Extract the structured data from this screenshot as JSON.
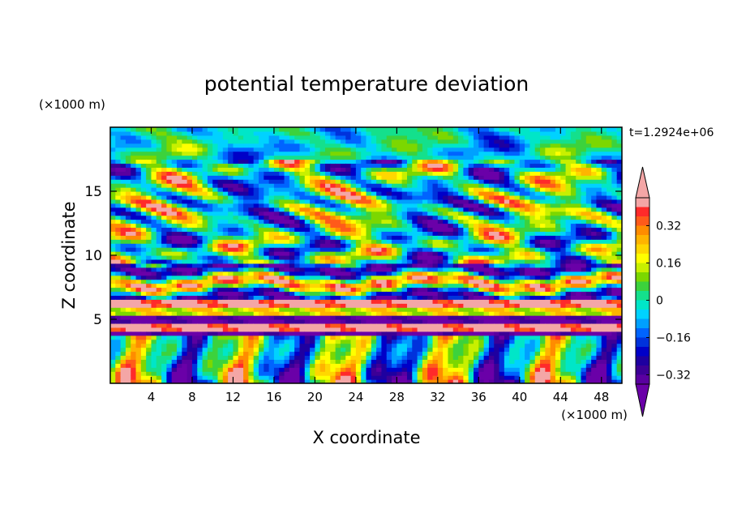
{
  "chart_data": {
    "type": "heatmap",
    "title": "potential temperature deviation",
    "xlabel": "X coordinate",
    "ylabel": "Z coordinate",
    "x_unit": "(×1000 m)",
    "y_unit": "(×1000 m)",
    "time_label": "t=1.2924e+06",
    "xlim": [
      0,
      50
    ],
    "ylim": [
      0,
      20
    ],
    "x_ticks": [
      "4",
      "8",
      "12",
      "16",
      "20",
      "24",
      "28",
      "32",
      "36",
      "40",
      "44",
      "48"
    ],
    "y_ticks": [
      "5",
      "10",
      "15"
    ],
    "colorbar": {
      "labels": [
        "0.32",
        "0.16",
        "0",
        "-0.16",
        "-0.32"
      ],
      "bands": [
        {
          "lo": 0.4,
          "hi": 0.44,
          "color": "#f4a6a6"
        },
        {
          "lo": 0.36,
          "hi": 0.4,
          "color": "#ff2a2a"
        },
        {
          "lo": 0.32,
          "hi": 0.36,
          "color": "#ff5a1a"
        },
        {
          "lo": 0.28,
          "hi": 0.32,
          "color": "#ff8c00"
        },
        {
          "lo": 0.24,
          "hi": 0.28,
          "color": "#ffb400"
        },
        {
          "lo": 0.2,
          "hi": 0.24,
          "color": "#ffd700"
        },
        {
          "lo": 0.16,
          "hi": 0.2,
          "color": "#ffff00"
        },
        {
          "lo": 0.12,
          "hi": 0.16,
          "color": "#c8f000"
        },
        {
          "lo": 0.08,
          "hi": 0.12,
          "color": "#7cd700"
        },
        {
          "lo": 0.04,
          "hi": 0.08,
          "color": "#3cd23c"
        },
        {
          "lo": 0.0,
          "hi": 0.04,
          "color": "#14e08c"
        },
        {
          "lo": -0.04,
          "hi": 0.0,
          "color": "#00e6c8"
        },
        {
          "lo": -0.08,
          "hi": -0.04,
          "color": "#00d2ff"
        },
        {
          "lo": -0.12,
          "hi": -0.08,
          "color": "#00a0ff"
        },
        {
          "lo": -0.16,
          "hi": -0.12,
          "color": "#0064ff"
        },
        {
          "lo": -0.2,
          "hi": -0.16,
          "color": "#0032dc"
        },
        {
          "lo": -0.24,
          "hi": -0.2,
          "color": "#0000c8"
        },
        {
          "lo": -0.28,
          "hi": -0.24,
          "color": "#1e00a0"
        },
        {
          "lo": -0.32,
          "hi": -0.28,
          "color": "#3c0096"
        },
        {
          "lo": -0.36,
          "hi": -0.32,
          "color": "#5a00a0"
        }
      ],
      "over_color": "#f4a6a6",
      "under_color": "#6a00a8"
    }
  }
}
